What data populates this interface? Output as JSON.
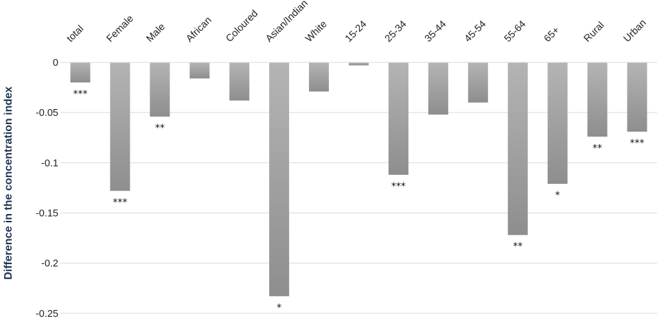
{
  "chart_data": {
    "type": "bar",
    "title": "",
    "xlabel": "",
    "ylabel": "Difference in the concentration index",
    "categories": [
      "total",
      "Female",
      "Male",
      "African",
      "Coloured",
      "Asian/Indian",
      "White",
      "15-24",
      "25-34",
      "35-44",
      "45-54",
      "55-64",
      "65+",
      "Rural",
      "Urban"
    ],
    "values": [
      -0.02,
      -0.128,
      -0.054,
      -0.016,
      -0.038,
      -0.233,
      -0.029,
      -0.003,
      -0.112,
      -0.052,
      -0.04,
      -0.172,
      -0.121,
      -0.074,
      -0.069
    ],
    "significance": [
      "***",
      "***",
      "**",
      "",
      "",
      "*",
      "",
      "",
      "***",
      "",
      "",
      "**",
      "*",
      "**",
      "***"
    ],
    "yticks": [
      "0",
      "-0.05",
      "-0.1",
      "-0.15",
      "-0.2",
      "-0.25"
    ],
    "ylim": [
      -0.25,
      0
    ],
    "grid": true,
    "legend": "none",
    "colors": {
      "bar_top": "#b4b4b4",
      "bar_bottom": "#8e8e8e",
      "grid": "#d9d9d9",
      "axis_label": "#1f3350"
    }
  }
}
